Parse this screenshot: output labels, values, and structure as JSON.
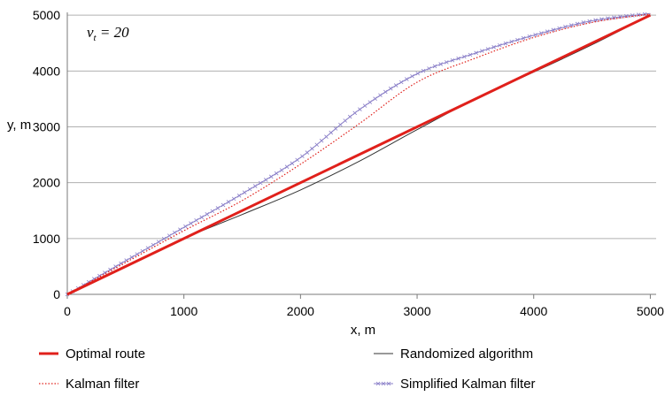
{
  "chart_data": {
    "type": "line",
    "annotation": "v_t = 20",
    "xlabel": "x, m",
    "ylabel": "y, m",
    "xlim": [
      0,
      5050
    ],
    "ylim": [
      0,
      5050
    ],
    "xticks": [
      "0",
      "1000",
      "2000",
      "3000",
      "4000",
      "5000"
    ],
    "yticks": [
      "0",
      "1000",
      "2000",
      "3000",
      "4000",
      "5000"
    ],
    "grid": "horizontal",
    "legend_position": "bottom",
    "series": [
      {
        "name": "Optimal route",
        "color": "#e0201b",
        "style": "solid-thick",
        "x": [
          0,
          5000
        ],
        "y": [
          0,
          5000
        ]
      },
      {
        "name": "Randomized algorithm",
        "color": "#333333",
        "style": "solid-thin",
        "x": [
          0,
          500,
          1000,
          1500,
          2000,
          2500,
          3000,
          3500,
          4000,
          4500,
          5000
        ],
        "y": [
          0,
          500,
          1000,
          1430,
          1870,
          2380,
          2950,
          3500,
          3980,
          4470,
          5000
        ]
      },
      {
        "name": "Kalman filter",
        "color": "#e0201b",
        "style": "dotted",
        "x": [
          0,
          500,
          1000,
          1500,
          2000,
          2500,
          3000,
          3500,
          4000,
          4500,
          5000
        ],
        "y": [
          0,
          570,
          1140,
          1680,
          2330,
          3050,
          3800,
          4230,
          4600,
          4870,
          5020
        ]
      },
      {
        "name": "Simplified Kalman filter",
        "color": "#8a7fc8",
        "style": "marker-line",
        "x": [
          0,
          500,
          1000,
          1500,
          2000,
          2500,
          3000,
          3500,
          4000,
          4500,
          5000
        ],
        "y": [
          0,
          600,
          1200,
          1800,
          2450,
          3300,
          3950,
          4320,
          4640,
          4900,
          5030
        ]
      }
    ]
  }
}
